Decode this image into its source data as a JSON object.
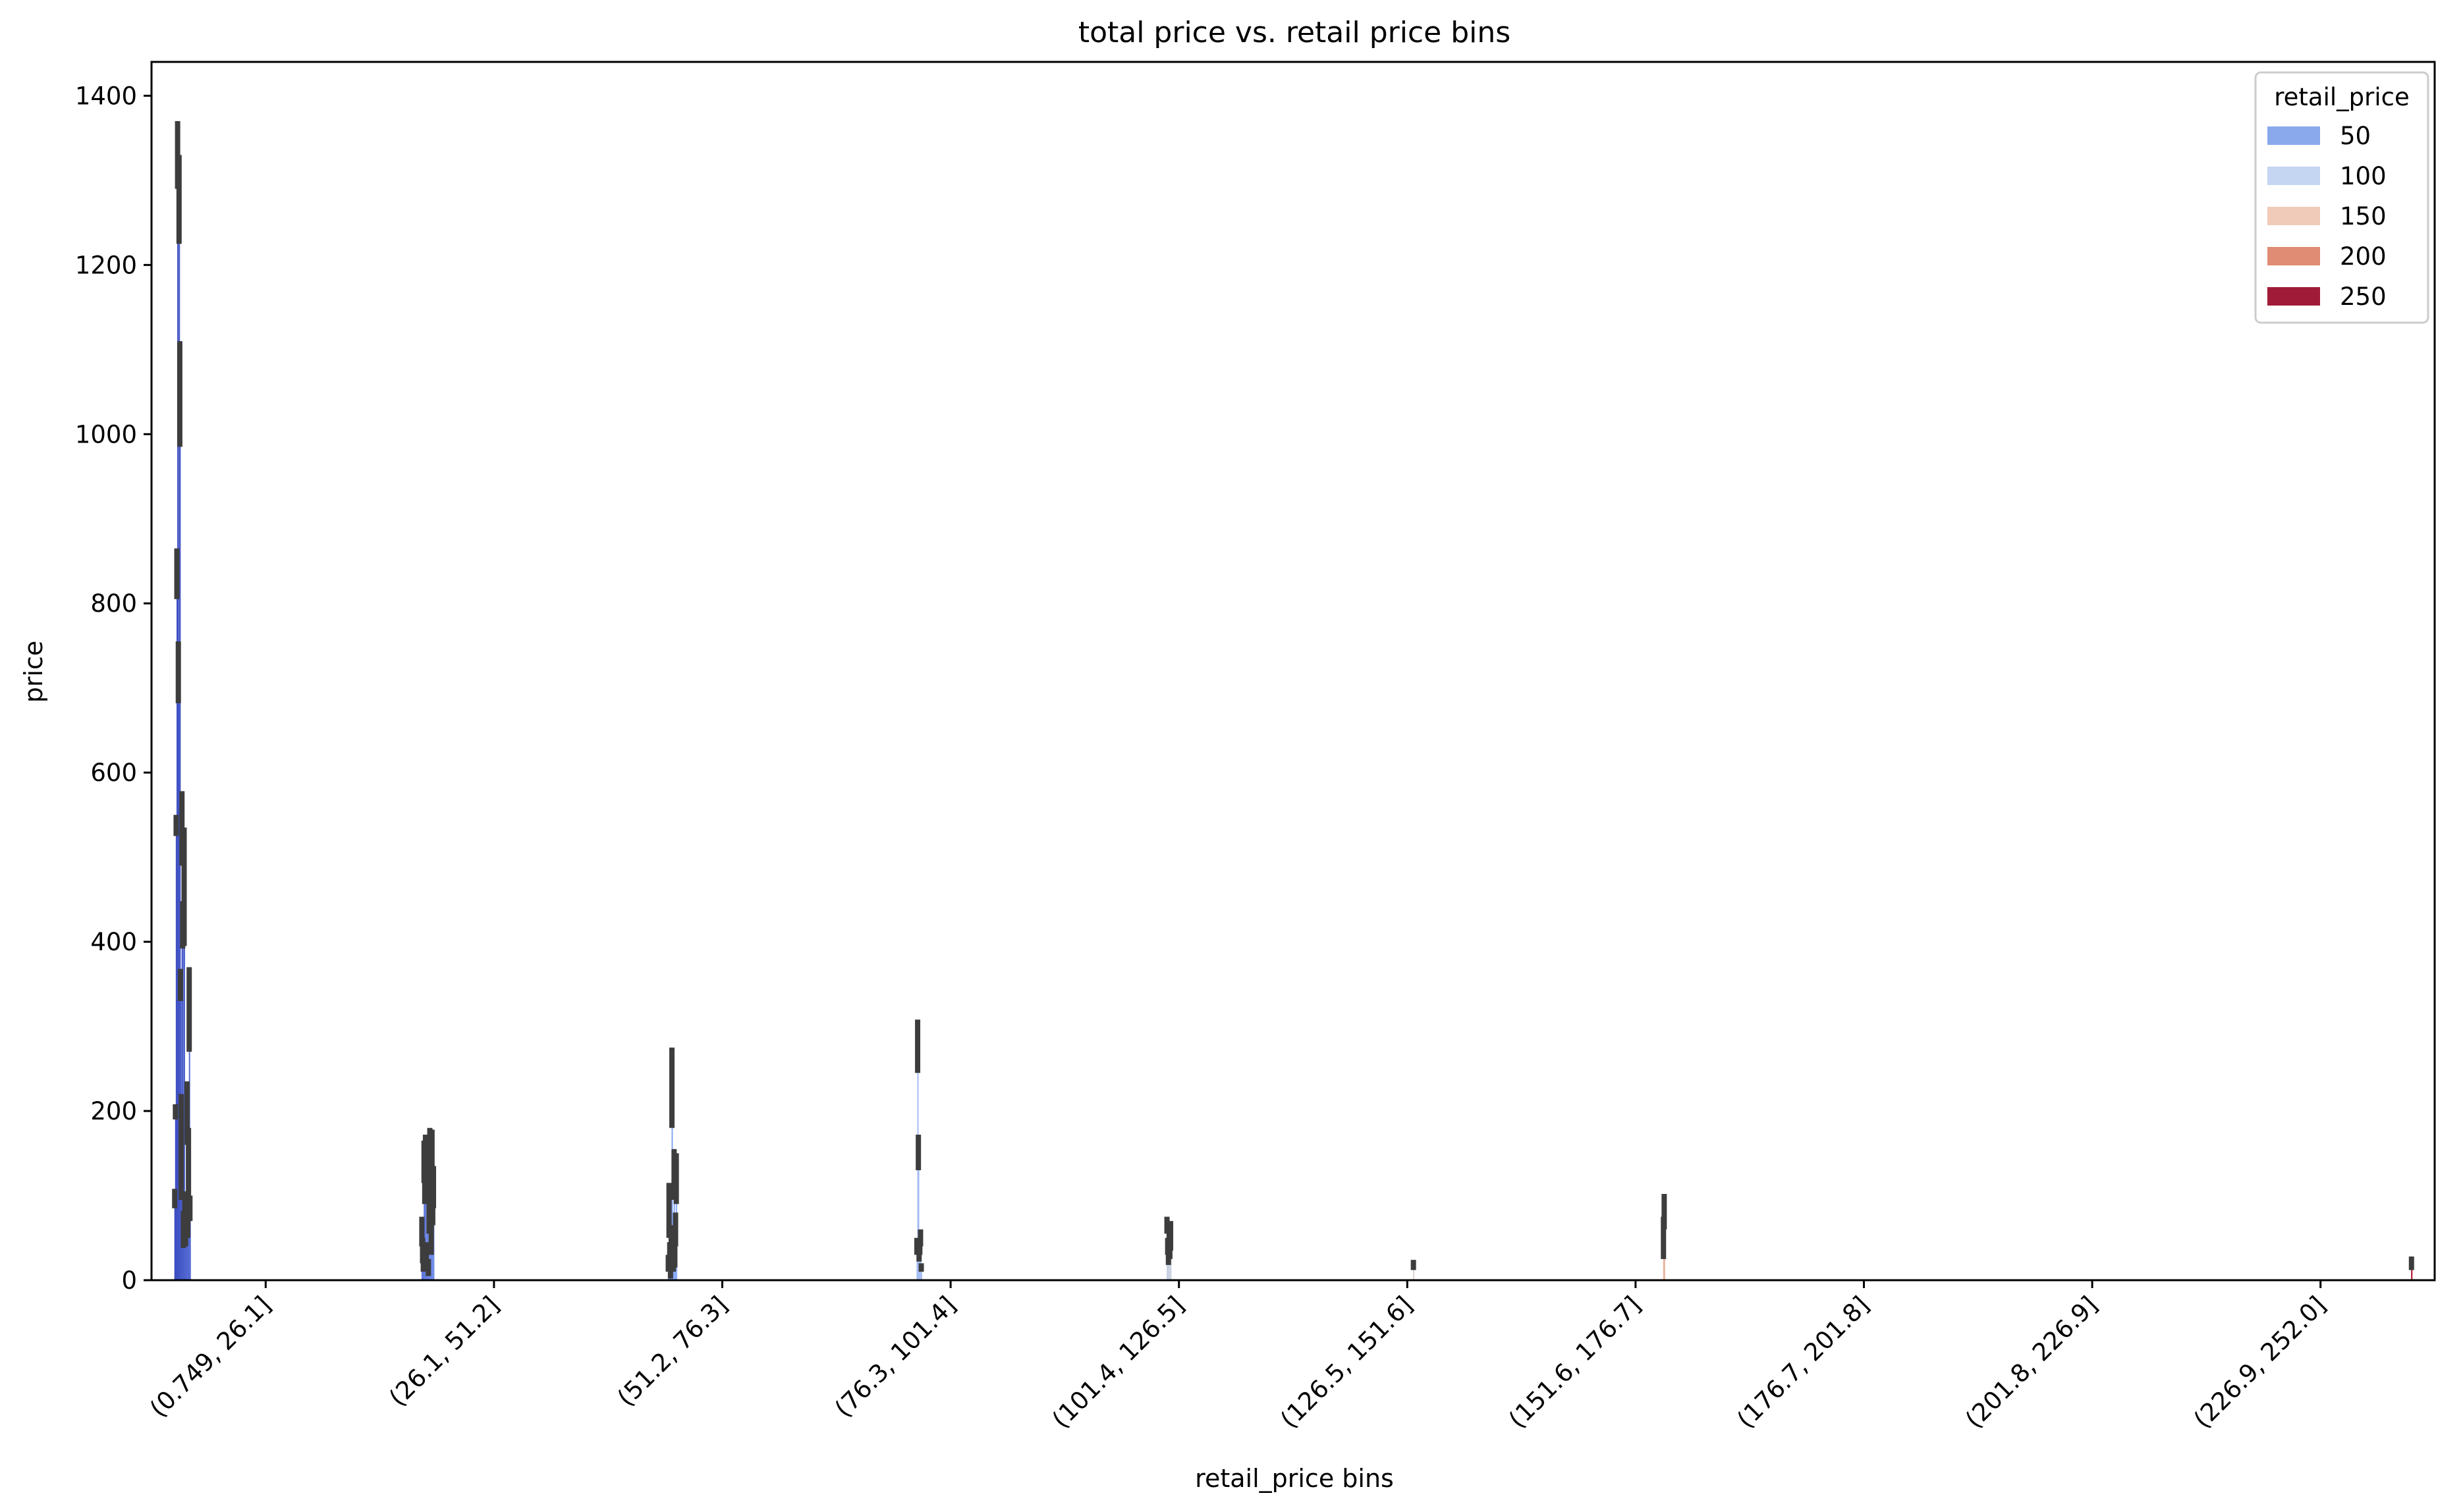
{
  "chart_data": {
    "type": "bar",
    "title": "total price vs. retail price bins",
    "xlabel": "retail_price bins",
    "ylabel": "price",
    "ylim": [
      0,
      1440
    ],
    "yticks": [
      0,
      200,
      400,
      600,
      800,
      1000,
      1200,
      1400
    ],
    "ytick_labels": [
      "0",
      "200",
      "400",
      "600",
      "800",
      "1000",
      "1200",
      "1400"
    ],
    "categories": [
      "(0.749, 26.1]",
      "(26.1, 51.2]",
      "(51.2, 76.3]",
      "(76.3, 101.4]",
      "(101.4, 126.5]",
      "(126.5, 151.6]",
      "(151.6, 176.7]",
      "(176.7, 201.8]",
      "(201.8, 226.9]",
      "(226.9, 252.0]"
    ],
    "grid": false,
    "legend": {
      "title": "retail_price",
      "placement": "top-right",
      "entries": [
        {
          "label": "50",
          "color": "#8aa8ec"
        },
        {
          "label": "100",
          "color": "#c5d6f2"
        },
        {
          "label": "150",
          "color": "#f0cbb9"
        },
        {
          "label": "200",
          "color": "#e08b73"
        },
        {
          "label": "250",
          "color": "#a01b38"
        }
      ]
    },
    "colormap": "coolwarm",
    "retail_price_range": [
      1,
      252
    ],
    "series": [
      {
        "bin": "(0.749, 26.1]",
        "bars": [
          {
            "retail_price": 1,
            "value": 95,
            "err": [
              85,
              108
            ]
          },
          {
            "retail_price": 2,
            "value": 198,
            "err": [
              190,
              208
            ]
          },
          {
            "retail_price": 3,
            "value": 540,
            "err": [
              525,
              550
            ]
          },
          {
            "retail_price": 4,
            "value": 835,
            "err": [
              805,
              865
            ]
          },
          {
            "retail_price": 5,
            "value": 1330,
            "err": [
              1290,
              1370
            ]
          },
          {
            "retail_price": 6,
            "value": 720,
            "err": [
              682,
              755
            ]
          },
          {
            "retail_price": 7,
            "value": 1275,
            "err": [
              1225,
              1330
            ]
          },
          {
            "retail_price": 8,
            "value": 1050,
            "err": [
              985,
              1110
            ]
          },
          {
            "retail_price": 9,
            "value": 350,
            "err": [
              330,
              368
            ]
          },
          {
            "retail_price": 10,
            "value": 160,
            "err": [
              95,
              220
            ]
          },
          {
            "retail_price": 11,
            "value": 535,
            "err": [
              490,
              578
            ]
          },
          {
            "retail_price": 12,
            "value": 420,
            "err": [
              392,
              448
            ]
          },
          {
            "retail_price": 13,
            "value": 60,
            "err": [
              38,
              82
            ]
          },
          {
            "retail_price": 14,
            "value": 465,
            "err": [
              395,
              535
            ]
          },
          {
            "retail_price": 15,
            "value": 78,
            "err": [
              55,
              100
            ]
          },
          {
            "retail_price": 16,
            "value": 60,
            "err": [
              40,
              80
            ]
          },
          {
            "retail_price": 17,
            "value": 90,
            "err": [
              75,
              105
            ]
          },
          {
            "retail_price": 18,
            "value": 200,
            "err": [
              160,
              235
            ]
          },
          {
            "retail_price": 19,
            "value": 70,
            "err": [
              50,
              90
            ]
          },
          {
            "retail_price": 20,
            "value": 150,
            "err": [
              100,
              180
            ]
          },
          {
            "retail_price": 21,
            "value": 320,
            "err": [
              270,
              370
            ]
          },
          {
            "retail_price": 22,
            "value": 85,
            "err": [
              70,
              100
            ]
          }
        ]
      },
      {
        "bin": "(26.1, 51.2]",
        "bars": [
          {
            "retail_price": 27,
            "value": 60,
            "err": [
              40,
              75
            ]
          },
          {
            "retail_price": 28,
            "value": 35,
            "err": [
              20,
              50
            ]
          },
          {
            "retail_price": 29,
            "value": 20,
            "err": [
              10,
              30
            ]
          },
          {
            "retail_price": 30,
            "value": 140,
            "err": [
              115,
              165
            ]
          },
          {
            "retail_price": 31,
            "value": 110,
            "err": [
              90,
              130
            ]
          },
          {
            "retail_price": 32,
            "value": 150,
            "err": [
              125,
              172
            ]
          },
          {
            "retail_price": 33,
            "value": 30,
            "err": [
              15,
              45
            ]
          },
          {
            "retail_price": 34,
            "value": 120,
            "err": [
              95,
              145
            ]
          },
          {
            "retail_price": 35,
            "value": 140,
            "err": [
              115,
              165
            ]
          },
          {
            "retail_price": 36,
            "value": 15,
            "err": [
              5,
              25
            ]
          },
          {
            "retail_price": 37,
            "value": 95,
            "err": [
              55,
              130
            ]
          },
          {
            "retail_price": 38,
            "value": 150,
            "err": [
              115,
              180
            ]
          },
          {
            "retail_price": 39,
            "value": 120,
            "err": [
              80,
              150
            ]
          },
          {
            "retail_price": 40,
            "value": 80,
            "err": [
              30,
              120
            ]
          },
          {
            "retail_price": 41,
            "value": 145,
            "err": [
              110,
              178
            ]
          },
          {
            "retail_price": 42,
            "value": 95,
            "err": [
              65,
              125
            ]
          },
          {
            "retail_price": 43,
            "value": 115,
            "err": [
              85,
              135
            ]
          }
        ]
      },
      {
        "bin": "(51.2, 76.3]",
        "bars": [
          {
            "retail_price": 52,
            "value": 20,
            "err": [
              10,
              30
            ]
          },
          {
            "retail_price": 53,
            "value": 85,
            "err": [
              50,
              115
            ]
          },
          {
            "retail_price": 54,
            "value": 30,
            "err": [
              15,
              45
            ]
          },
          {
            "retail_price": 55,
            "value": 10,
            "err": [
              2,
              18
            ]
          },
          {
            "retail_price": 56,
            "value": 35,
            "err": [
              20,
              50
            ]
          },
          {
            "retail_price": 57,
            "value": 225,
            "err": [
              180,
              275
            ]
          },
          {
            "retail_price": 58,
            "value": 50,
            "err": [
              35,
              65
            ]
          },
          {
            "retail_price": 59,
            "value": 25,
            "err": [
              10,
              40
            ]
          },
          {
            "retail_price": 60,
            "value": 125,
            "err": [
              95,
              155
            ]
          },
          {
            "retail_price": 61,
            "value": 30,
            "err": [
              15,
              45
            ]
          },
          {
            "retail_price": 62,
            "value": 60,
            "err": [
              40,
              80
            ]
          },
          {
            "retail_price": 63,
            "value": 120,
            "err": [
              90,
              150
            ]
          }
        ]
      },
      {
        "bin": "(76.3, 101.4]",
        "bars": [
          {
            "retail_price": 80,
            "value": 40,
            "err": [
              30,
              50
            ]
          },
          {
            "retail_price": 81,
            "value": 275,
            "err": [
              245,
              308
            ]
          },
          {
            "retail_price": 82,
            "value": 150,
            "err": [
              130,
              172
            ]
          },
          {
            "retail_price": 83,
            "value": 30,
            "err": [
              22,
              38
            ]
          },
          {
            "retail_price": 84,
            "value": 40,
            "err": [
              30,
              50
            ]
          },
          {
            "retail_price": 85,
            "value": 50,
            "err": [
              40,
              60
            ]
          },
          {
            "retail_price": 86,
            "value": 15,
            "err": [
              10,
              20
            ]
          }
        ]
      },
      {
        "bin": "(101.4, 126.5]",
        "bars": [
          {
            "retail_price": 110,
            "value": 65,
            "err": [
              55,
              75
            ]
          },
          {
            "retail_price": 111,
            "value": 40,
            "err": [
              30,
              50
            ]
          },
          {
            "retail_price": 112,
            "value": 25,
            "err": [
              18,
              32
            ]
          },
          {
            "retail_price": 113,
            "value": 45,
            "err": [
              30,
              60
            ]
          },
          {
            "retail_price": 114,
            "value": 35,
            "err": [
              25,
              45
            ]
          },
          {
            "retail_price": 115,
            "value": 50,
            "err": [
              35,
              70
            ]
          }
        ]
      },
      {
        "bin": "(126.5, 151.6]",
        "bars": [
          {
            "retail_price": 135,
            "value": 18,
            "err": [
              12,
              24
            ]
          }
        ]
      },
      {
        "bin": "(151.6, 176.7]",
        "bars": [
          {
            "retail_price": 165,
            "value": 50,
            "err": [
              25,
              75
            ]
          },
          {
            "retail_price": 166,
            "value": 80,
            "err": [
              60,
              102
            ]
          }
        ]
      },
      {
        "bin": "(176.7, 201.8]",
        "bars": []
      },
      {
        "bin": "(201.8, 226.9]",
        "bars": []
      },
      {
        "bin": "(226.9, 252.0]",
        "bars": [
          {
            "retail_price": 252,
            "value": 20,
            "err": [
              12,
              28
            ]
          }
        ]
      }
    ]
  }
}
